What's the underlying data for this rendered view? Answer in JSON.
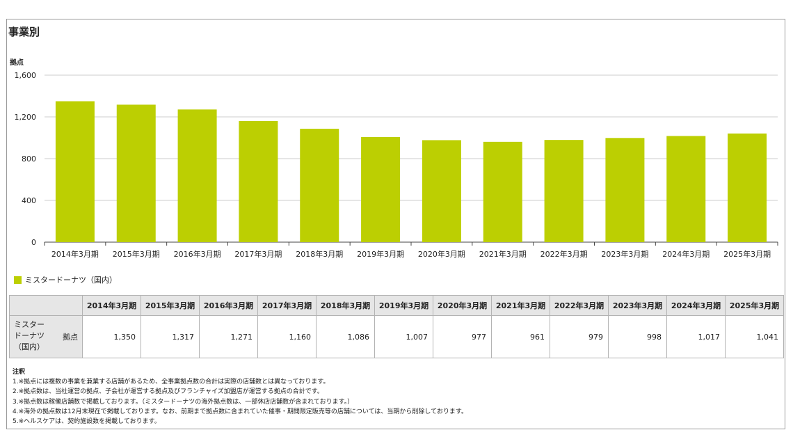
{
  "title": "事業別",
  "chart_data": {
    "type": "bar",
    "ylabel": "拠点",
    "ylim": [
      0,
      1600
    ],
    "yticks": [
      0,
      400,
      800,
      1200,
      1600
    ],
    "ytick_labels": [
      "0",
      "400",
      "800",
      "1,200",
      "1,600"
    ],
    "grid": true,
    "legend_position": "bottom-left",
    "categories": [
      "2014年3月期",
      "2015年3月期",
      "2016年3月期",
      "2017年3月期",
      "2018年3月期",
      "2019年3月期",
      "2020年3月期",
      "2021年3月期",
      "2022年3月期",
      "2023年3月期",
      "2024年3月期",
      "2025年3月期"
    ],
    "series": [
      {
        "name": "ミスタードーナツ（国内）",
        "color": "#bccf02",
        "values": [
          1350,
          1317,
          1271,
          1160,
          1086,
          1007,
          977,
          961,
          979,
          998,
          1017,
          1041
        ]
      }
    ]
  },
  "table": {
    "row_label_lines": [
      "ミスター",
      "ドーナツ",
      "（国内）"
    ],
    "row_unit": "拠点",
    "values": [
      "1,350",
      "1,317",
      "1,271",
      "1,160",
      "1,086",
      "1,007",
      "977",
      "961",
      "979",
      "998",
      "1,017",
      "1,041"
    ]
  },
  "notes": {
    "heading": "注釈",
    "items": [
      "1.※拠点には複数の事業を兼業する店舗があるため、全事業拠点数の合計は実際の店舗数とは異なっております。",
      "2.※拠点数は、当社運営の拠点、子会社が運営する拠点及びフランチャイズ加盟店が運営する拠点の合計です。",
      "3.※拠点数は稼働店舗数で掲載しております。（ミスタードーナツの海外拠点数は、一部休店店舗数が含まれております。）",
      "4.※海外の拠点数は12月末現在で掲載しております。なお、前期まで拠点数に含まれていた催事・期間限定販売等の店舗については、当期から削除しております。",
      "5.※ヘルスケアは、契約施設数を掲載しております。"
    ]
  }
}
